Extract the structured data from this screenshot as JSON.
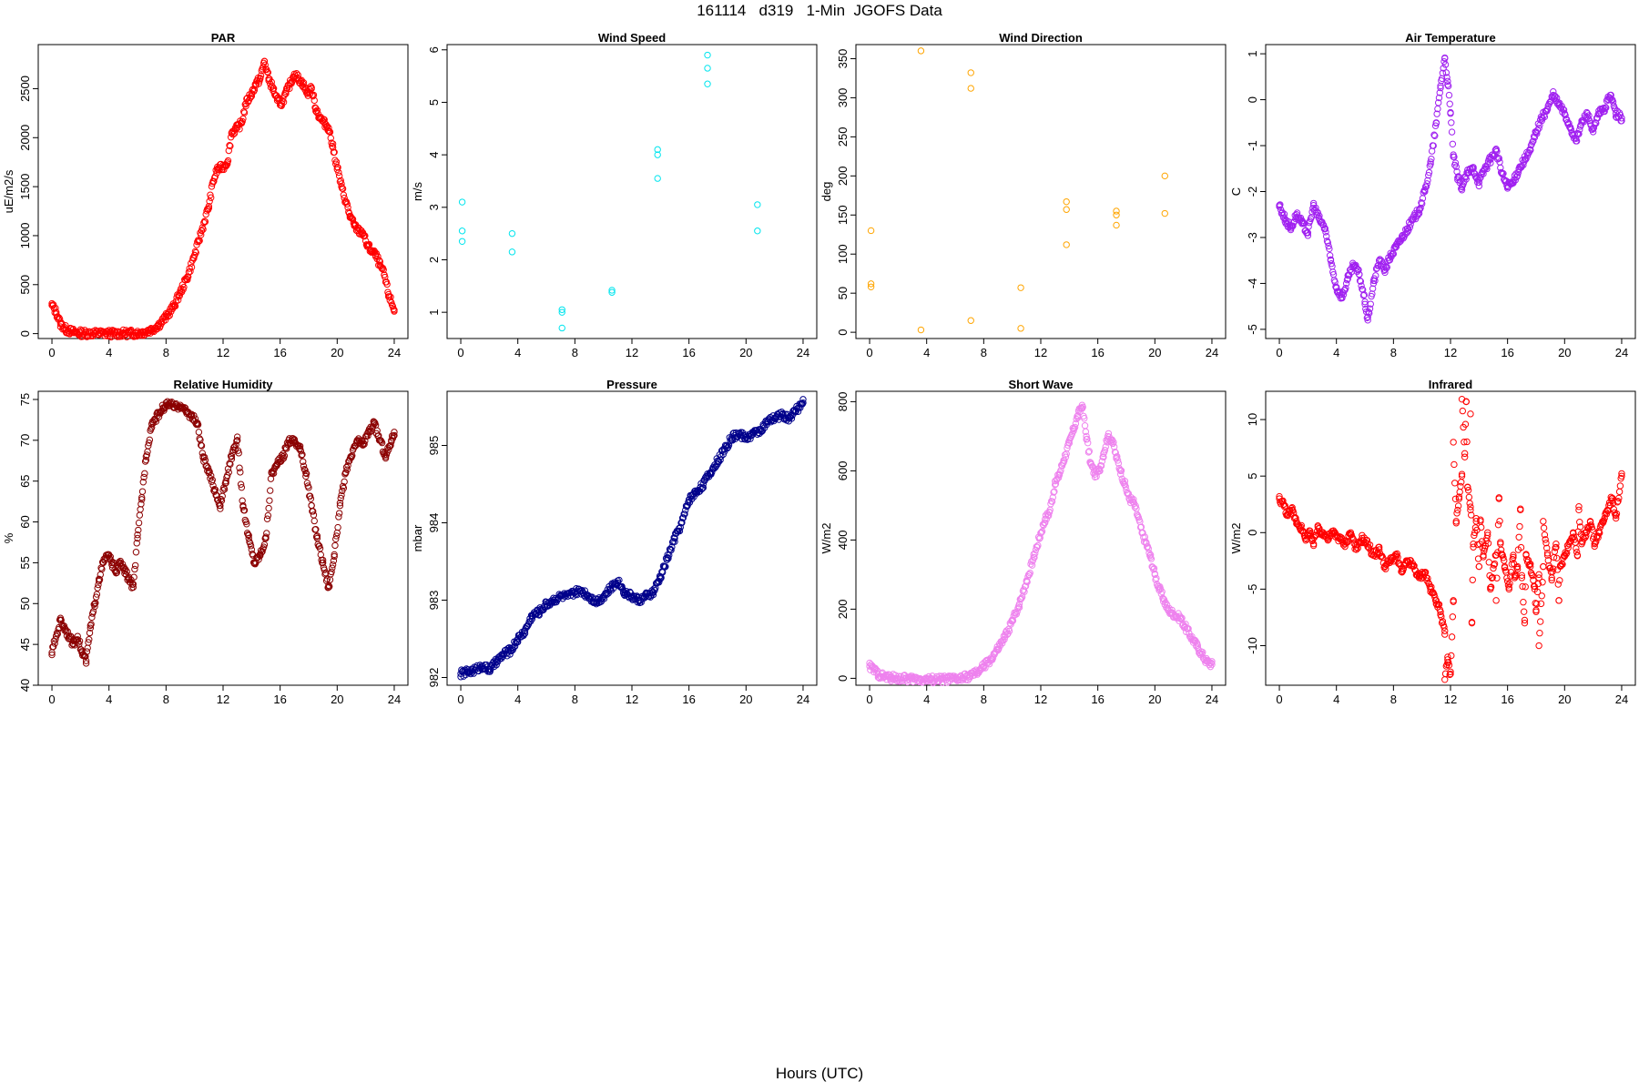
{
  "figure": {
    "title": "161114   d319   1-Min  JGOFS Data",
    "xcaption": "Hours (UTC)"
  },
  "chart_data": [
    {
      "type": "scatter",
      "title": "PAR",
      "xlabel": "",
      "ylabel": "uE/m2/s",
      "color": "#ff0000",
      "xlim": [
        0,
        24
      ],
      "xticks": [
        0,
        4,
        8,
        12,
        16,
        20,
        24
      ],
      "ylim": [
        -50,
        2950
      ],
      "yticks": [
        0,
        500,
        1000,
        1500,
        2000,
        2500
      ],
      "x": [
        0,
        0.3,
        0.6,
        1,
        1.5,
        2,
        3,
        4,
        5,
        6,
        6.5,
        7,
        7.5,
        8,
        8.5,
        9,
        9.5,
        10,
        10.5,
        11,
        11.3,
        11.6,
        12,
        12.3,
        12.6,
        13,
        13.3,
        13.6,
        14,
        14.3,
        14.6,
        14.9,
        15.2,
        15.5,
        15.8,
        16.1,
        16.4,
        16.7,
        17,
        17.3,
        17.6,
        17.9,
        18.2,
        18.5,
        18.8,
        19.1,
        19.4,
        19.7,
        20,
        20.3,
        20.6,
        20.9,
        21.2,
        21.5,
        21.8,
        22.1,
        22.4,
        22.7,
        23,
        23.3,
        23.6,
        24
      ],
      "y": [
        290,
        220,
        100,
        40,
        15,
        5,
        3,
        2,
        2,
        5,
        15,
        40,
        90,
        170,
        270,
        420,
        580,
        800,
        1050,
        1300,
        1550,
        1680,
        1700,
        1750,
        2050,
        2100,
        2150,
        2350,
        2450,
        2550,
        2600,
        2780,
        2600,
        2500,
        2380,
        2350,
        2450,
        2550,
        2650,
        2600,
        2550,
        2450,
        2500,
        2300,
        2200,
        2150,
        2100,
        1900,
        1700,
        1500,
        1350,
        1200,
        1100,
        1050,
        1030,
        900,
        850,
        800,
        700,
        600,
        400,
        240
      ]
    },
    {
      "type": "scatter",
      "title": "Wind Speed",
      "xlabel": "",
      "ylabel": "m/s",
      "color": "#00e5ee",
      "xlim": [
        0,
        24
      ],
      "xticks": [
        0,
        4,
        8,
        12,
        16,
        20,
        24
      ],
      "ylim": [
        0.5,
        6.1
      ],
      "yticks": [
        1,
        2,
        3,
        4,
        5,
        6
      ],
      "x": [
        0.1,
        0.1,
        0.1,
        3.6,
        3.6,
        7.1,
        7.1,
        7.1,
        10.6,
        10.6,
        13.8,
        13.8,
        13.8,
        17.3,
        17.3,
        17.3,
        20.8,
        20.8
      ],
      "y": [
        3.1,
        2.55,
        2.35,
        2.5,
        2.15,
        1.05,
        1.0,
        0.7,
        1.42,
        1.38,
        4.1,
        4.0,
        3.55,
        5.9,
        5.65,
        5.35,
        3.05,
        2.55
      ]
    },
    {
      "type": "scatter",
      "title": "Wind Direction",
      "xlabel": "",
      "ylabel": "deg",
      "color": "#ffa500",
      "xlim": [
        0,
        24
      ],
      "xticks": [
        0,
        4,
        8,
        12,
        16,
        20,
        24
      ],
      "ylim": [
        -8,
        368
      ],
      "yticks": [
        0,
        50,
        100,
        150,
        200,
        250,
        300,
        350
      ],
      "x": [
        0.1,
        0.1,
        0.1,
        3.6,
        3.6,
        7.1,
        7.1,
        7.1,
        10.6,
        10.6,
        13.8,
        13.8,
        13.8,
        17.3,
        17.3,
        17.3,
        20.7,
        20.7
      ],
      "y": [
        130,
        62,
        58,
        360,
        3,
        332,
        312,
        15,
        57,
        5,
        167,
        157,
        112,
        155,
        150,
        137,
        200,
        152
      ]
    },
    {
      "type": "scatter",
      "title": "Air Temperature",
      "xlabel": "",
      "ylabel": "C",
      "color": "#a020f0",
      "xlim": [
        0,
        24
      ],
      "xticks": [
        0,
        4,
        8,
        12,
        16,
        20,
        24
      ],
      "ylim": [
        -5.2,
        1.2
      ],
      "yticks": [
        -5,
        -4,
        -3,
        -2,
        -1,
        0,
        1
      ],
      "x": [
        0,
        0.4,
        0.8,
        1.2,
        1.6,
        2,
        2.4,
        2.8,
        3.2,
        3.6,
        4,
        4.4,
        4.8,
        5.2,
        5.6,
        6,
        6.2,
        6.6,
        7,
        7.4,
        7.8,
        8.2,
        8.6,
        9,
        9.4,
        9.8,
        10.2,
        10.6,
        11,
        11.3,
        11.6,
        11.8,
        12,
        12.2,
        12.5,
        12.8,
        13.2,
        13.6,
        14,
        14.4,
        14.8,
        15.2,
        15.6,
        16,
        16.4,
        16.8,
        17.2,
        17.6,
        18,
        18.4,
        18.8,
        19.2,
        19.6,
        20,
        20.4,
        20.8,
        21.2,
        21.6,
        22,
        22.4,
        22.8,
        23.2,
        23.6,
        24
      ],
      "y": [
        -2.3,
        -2.6,
        -2.8,
        -2.5,
        -2.7,
        -2.9,
        -2.3,
        -2.6,
        -2.8,
        -3.5,
        -4.1,
        -4.3,
        -3.9,
        -3.6,
        -3.8,
        -4.4,
        -4.8,
        -4.0,
        -3.5,
        -3.7,
        -3.4,
        -3.2,
        -3.0,
        -2.8,
        -2.6,
        -2.4,
        -2.0,
        -1.4,
        -0.5,
        0.3,
        0.9,
        0.4,
        -0.3,
        -1.2,
        -1.7,
        -1.9,
        -1.6,
        -1.5,
        -1.8,
        -1.5,
        -1.3,
        -1.1,
        -1.6,
        -1.9,
        -1.8,
        -1.5,
        -1.3,
        -1.1,
        -0.7,
        -0.4,
        -0.2,
        0.1,
        -0.1,
        -0.3,
        -0.6,
        -0.9,
        -0.5,
        -0.3,
        -0.7,
        -0.3,
        -0.2,
        0.1,
        -0.3,
        -0.4
      ]
    },
    {
      "type": "scatter",
      "title": "Relative Humidity",
      "xlabel": "",
      "ylabel": "%",
      "color": "#8b0000",
      "xlim": [
        0,
        24
      ],
      "xticks": [
        0,
        4,
        8,
        12,
        16,
        20,
        24
      ],
      "ylim": [
        40,
        76
      ],
      "yticks": [
        40,
        45,
        50,
        55,
        60,
        65,
        70,
        75
      ],
      "x": [
        0,
        0.3,
        0.6,
        0.9,
        1.2,
        1.5,
        1.8,
        2.1,
        2.4,
        2.7,
        3,
        3.3,
        3.6,
        3.9,
        4.2,
        4.5,
        4.8,
        5.1,
        5.4,
        5.7,
        6,
        6.3,
        6.6,
        7,
        7.4,
        7.8,
        8.2,
        8.6,
        9,
        9.4,
        9.8,
        10.2,
        10.6,
        11,
        11.4,
        11.8,
        12.2,
        12.6,
        13,
        13.4,
        13.8,
        14.2,
        14.6,
        15,
        15.4,
        15.8,
        16.2,
        16.6,
        17,
        17.4,
        17.8,
        18.2,
        18.6,
        19,
        19.4,
        19.8,
        20.2,
        20.6,
        21,
        21.4,
        21.8,
        22.2,
        22.6,
        23,
        23.4,
        23.8,
        24
      ],
      "y": [
        44,
        46,
        48,
        47,
        46,
        45,
        46,
        44,
        43,
        47,
        50,
        53,
        55,
        56,
        55,
        54,
        55,
        54,
        53,
        52,
        58,
        63,
        68,
        72,
        73,
        74,
        74.5,
        74,
        74.3,
        73.5,
        73,
        72,
        68,
        66,
        64,
        62,
        65,
        68,
        70,
        62,
        58,
        55,
        56,
        58,
        66,
        67,
        68,
        70,
        70,
        69,
        66,
        62,
        58,
        55,
        52,
        56,
        62,
        66,
        68,
        70,
        69.5,
        71,
        72,
        70,
        68,
        70,
        71
      ]
    },
    {
      "type": "scatter",
      "title": "Pressure",
      "xlabel": "",
      "ylabel": "mbar",
      "color": "#00008b",
      "xlim": [
        0,
        24
      ],
      "xticks": [
        0,
        4,
        8,
        12,
        16,
        20,
        24
      ],
      "ylim": [
        981.9,
        985.7
      ],
      "yticks": [
        982.0,
        983.0,
        984.0,
        985.0
      ],
      "x": [
        0,
        0.5,
        1,
        1.5,
        2,
        2.5,
        3,
        3.5,
        4,
        4.5,
        5,
        5.5,
        6,
        6.5,
        7,
        7.5,
        8,
        8.5,
        9,
        9.5,
        10,
        10.5,
        11,
        11.5,
        12,
        12.5,
        13,
        13.5,
        14,
        14.5,
        15,
        15.5,
        16,
        16.5,
        17,
        17.5,
        18,
        18.5,
        19,
        19.5,
        20,
        20.5,
        21,
        21.5,
        22,
        22.5,
        23,
        23.5,
        24
      ],
      "y": [
        982.05,
        982.07,
        982.1,
        982.15,
        982.1,
        982.2,
        982.3,
        982.35,
        982.5,
        982.6,
        982.8,
        982.85,
        982.95,
        983.0,
        983.05,
        983.05,
        983.1,
        983.12,
        983.05,
        982.98,
        983.05,
        983.15,
        983.25,
        983.1,
        983.05,
        983.0,
        983.05,
        983.1,
        983.3,
        983.55,
        983.8,
        984.0,
        984.3,
        984.4,
        984.5,
        984.65,
        984.8,
        984.95,
        985.1,
        985.15,
        985.1,
        985.15,
        985.2,
        985.3,
        985.35,
        985.4,
        985.35,
        985.45,
        985.55
      ]
    },
    {
      "type": "scatter",
      "title": "Short Wave",
      "xlabel": "",
      "ylabel": "W/m2",
      "color": "#ee82ee",
      "xlim": [
        0,
        24
      ],
      "xticks": [
        0,
        4,
        8,
        12,
        16,
        20,
        24
      ],
      "ylim": [
        -20,
        830
      ],
      "yticks": [
        0,
        200,
        400,
        600,
        800
      ],
      "x": [
        0,
        0.3,
        0.6,
        1,
        1.5,
        2,
        3,
        4,
        5,
        6,
        6.5,
        7,
        7.5,
        8,
        8.5,
        9,
        9.5,
        10,
        10.5,
        11,
        11.5,
        12,
        12.3,
        12.6,
        13,
        13.3,
        13.6,
        14,
        14.3,
        14.6,
        14.9,
        15.2,
        15.5,
        15.8,
        16.1,
        16.4,
        16.7,
        17,
        17.3,
        17.6,
        17.9,
        18.2,
        18.5,
        18.8,
        19.1,
        19.4,
        19.7,
        20,
        20.3,
        20.6,
        20.9,
        21.2,
        21.5,
        21.8,
        22.1,
        22.4,
        22.7,
        23,
        23.3,
        23.6,
        24
      ],
      "y": [
        35,
        25,
        12,
        5,
        2,
        0,
        -2,
        -3,
        -3,
        -2,
        1,
        6,
        15,
        35,
        55,
        85,
        120,
        165,
        215,
        280,
        350,
        420,
        460,
        480,
        560,
        590,
        630,
        680,
        720,
        760,
        790,
        700,
        620,
        590,
        600,
        650,
        700,
        690,
        640,
        600,
        560,
        520,
        510,
        470,
        420,
        390,
        350,
        300,
        260,
        230,
        200,
        190,
        180,
        175,
        150,
        130,
        110,
        90,
        70,
        50,
        40
      ]
    },
    {
      "type": "scatter",
      "title": "Infrared",
      "xlabel": "",
      "ylabel": "W/m2",
      "color": "#ff0000",
      "xlim": [
        0,
        24
      ],
      "xticks": [
        0,
        4,
        8,
        12,
        16,
        20,
        24
      ],
      "ylim": [
        -13.5,
        12.5
      ],
      "yticks": [
        -10,
        -5,
        0,
        5,
        10
      ],
      "x": [
        0,
        0.3,
        0.6,
        0.9,
        1.2,
        1.5,
        1.8,
        2.1,
        2.4,
        2.7,
        3,
        3.4,
        3.8,
        4.2,
        4.6,
        5,
        5.4,
        5.8,
        6.2,
        6.6,
        7,
        7.4,
        7.8,
        8.2,
        8.6,
        9,
        9.4,
        9.8,
        10.2,
        10.6,
        11,
        11.3,
        11.6,
        11.8,
        12,
        12.2,
        12.4,
        12.6,
        12.8,
        13,
        13.2,
        13.4,
        13.6,
        13.8,
        14,
        14.3,
        14.6,
        14.9,
        15.2,
        15.5,
        15.8,
        16.1,
        16.4,
        16.7,
        17,
        17.3,
        17.6,
        17.9,
        18.2,
        18.5,
        18.8,
        19.1,
        19.4,
        19.7,
        20,
        20.3,
        20.6,
        20.9,
        21.2,
        21.5,
        21.8,
        22.1,
        22.4,
        22.7,
        23,
        23.3,
        23.6,
        24,
        12.8,
        13.1,
        13.4,
        12.2,
        11.6,
        11.8,
        14.8,
        15.2,
        15.6,
        16.5,
        17.2,
        18.2,
        18.5,
        19.6,
        13.5,
        14.1,
        15.4,
        16.9,
        18.0,
        21.0
      ],
      "y": [
        3,
        2.5,
        1.5,
        2,
        1,
        0.5,
        -0.5,
        0,
        -1,
        0.5,
        0,
        -0.5,
        0,
        -0.5,
        -1,
        0,
        -1.5,
        -0.5,
        -1,
        -2,
        -1.5,
        -3,
        -2.5,
        -2,
        -3.5,
        -2.5,
        -3,
        -4,
        -3.5,
        -5,
        -6,
        -7,
        -9,
        -11,
        -12.5,
        -6,
        1,
        3,
        5,
        7,
        4,
        2,
        -1,
        1,
        -3,
        -2,
        0,
        -4,
        -2,
        -1,
        -3,
        -5,
        -2,
        -3,
        -4,
        -2,
        -3,
        -5,
        -4,
        -3,
        -2,
        -4,
        -1,
        -3,
        -2,
        -1,
        0,
        -2,
        -1,
        0,
        1,
        -1,
        0,
        1,
        2,
        3,
        1.5,
        5,
        11.8,
        11.6,
        10.5,
        8,
        -13,
        -11.5,
        -5,
        -6,
        -2,
        -4,
        -8,
        -10,
        1,
        -6,
        -8,
        1,
        3,
        2,
        -7,
        2
      ]
    }
  ]
}
